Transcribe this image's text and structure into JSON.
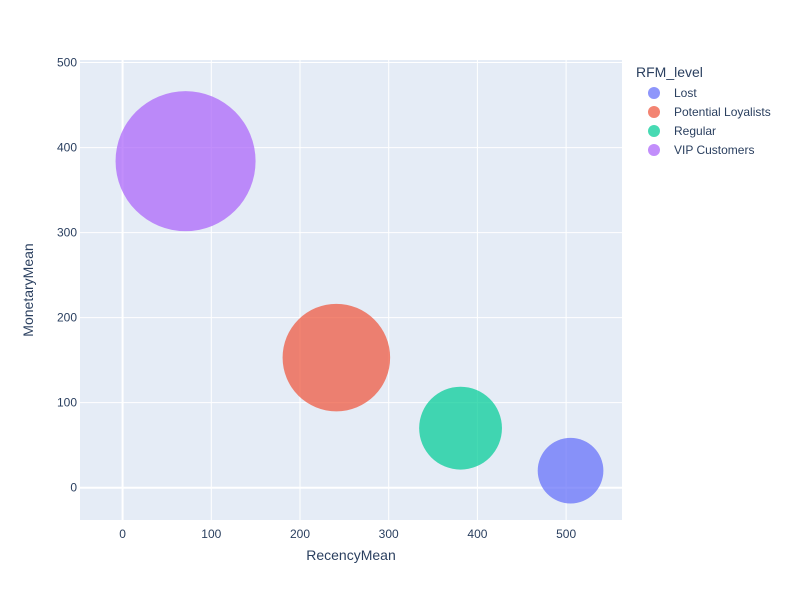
{
  "chart_data": {
    "type": "scatter",
    "subtype": "bubble",
    "xlabel": "RecencyMean",
    "ylabel": "MonetaryMean",
    "xlim": [
      -48,
      563
    ],
    "ylim": [
      -38,
      503
    ],
    "xticks": [
      0,
      100,
      200,
      300,
      400,
      500
    ],
    "yticks": [
      0,
      100,
      200,
      300,
      400,
      500
    ],
    "grid": true,
    "legend": {
      "title": "RFM_level",
      "placement": "right"
    },
    "series": [
      {
        "name": "Lost",
        "color": "#636efa",
        "x": 505,
        "y": 20,
        "size_relative": 0.22
      },
      {
        "name": "Potential Loyalists",
        "color": "#ef553b",
        "x": 241,
        "y": 153,
        "size_relative": 0.59
      },
      {
        "name": "Regular",
        "color": "#00cc96",
        "x": 381,
        "y": 70,
        "size_relative": 0.35
      },
      {
        "name": "VIP Customers",
        "color": "#ab63fa",
        "x": 71,
        "y": 384,
        "size_relative": 1.0
      }
    ]
  }
}
